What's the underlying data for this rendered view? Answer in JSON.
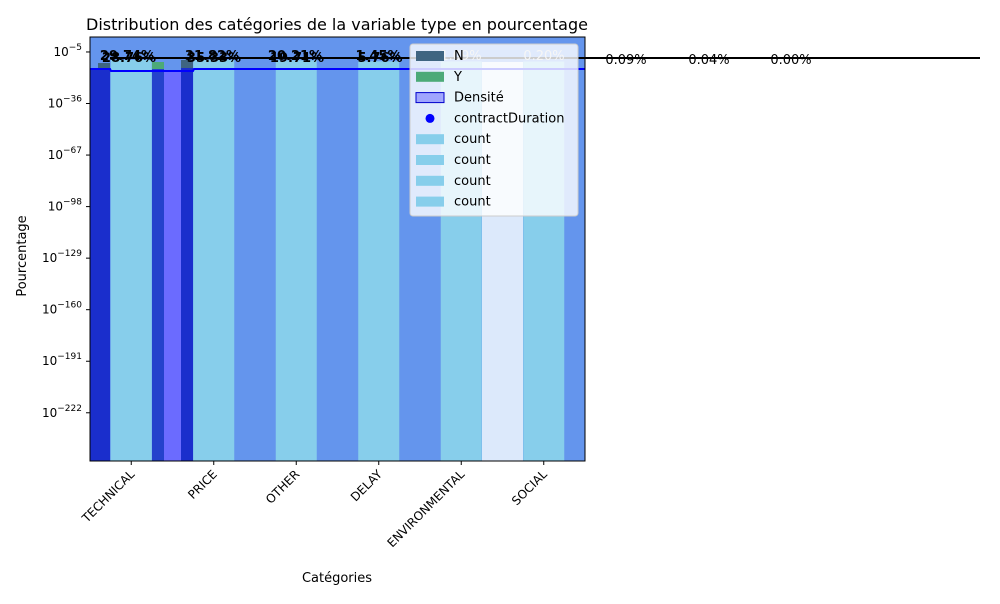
{
  "chart_data": {
    "type": "bar",
    "title": "Distribution des catégories de la variable type en pourcentage",
    "xlabel": "Catégories",
    "ylabel": "Pourcentage",
    "yscale": "log",
    "categories": [
      "TECHNICAL",
      "PRICE",
      "OTHER",
      "DELAY",
      "ENVIRONMENTAL",
      "SOCIAL"
    ],
    "y_ticks": [
      {
        "exp": "-5"
      },
      {
        "exp": "-36"
      },
      {
        "exp": "-67"
      },
      {
        "exp": "-98"
      },
      {
        "exp": "-129"
      },
      {
        "exp": "-160"
      },
      {
        "exp": "-191"
      },
      {
        "exp": "-222"
      }
    ],
    "ylim_exponent": [
      -251,
      4
    ],
    "series": [
      {
        "name": "N",
        "color": "#3f6581"
      },
      {
        "name": "Y",
        "color": "#4caa78"
      },
      {
        "name": "Densité",
        "color": "#6b6bff"
      },
      {
        "name": "contractDuration",
        "color": "#0000ff"
      },
      {
        "name": "count",
        "color": "#87ceeb"
      },
      {
        "name": "count",
        "color": "#87ceeb"
      },
      {
        "name": "count",
        "color": "#87ceeb"
      },
      {
        "name": "count",
        "color": "#87ceeb"
      }
    ],
    "count_values": [
      27.0,
      27.0,
      23.0,
      9.0,
      7.0,
      6.0
    ],
    "bar_labels": [
      {
        "text": "29.74%",
        "color": "#000000",
        "slot": 0
      },
      {
        "text": "28.76%",
        "color": "#000000",
        "slot": 0
      },
      {
        "text": "31.82%",
        "color": "#000000",
        "slot": 1
      },
      {
        "text": "35.33%",
        "color": "#000000",
        "slot": 1
      },
      {
        "text": "20.21%",
        "color": "#000000",
        "slot": 2
      },
      {
        "text": "19.71%",
        "color": "#000000",
        "slot": 2
      },
      {
        "text": "1.45%",
        "color": "#000000",
        "slot": 3
      },
      {
        "text": "5.76%",
        "color": "#000000",
        "slot": 3
      },
      {
        "text": "1.09%",
        "color": "#d3d3d3",
        "slot": 4
      },
      {
        "text": "0.20%",
        "color": "#d3d3d3",
        "slot": 5
      },
      {
        "text": "0.09%",
        "color": "#000000",
        "slot": 6
      },
      {
        "text": "0.04%",
        "color": "#000000",
        "slot": 7
      },
      {
        "text": "0.00%",
        "color": "#000000",
        "slot": 8
      }
    ],
    "colors": {
      "background_blue": "#6495ed",
      "dark_blue": "#1a2ecc",
      "density": "#6b6bff",
      "count": "#87ceeb",
      "n_bar": "#3f6581",
      "y_bar": "#4caa78",
      "line": "#0000ff"
    },
    "legend_position": "upper right",
    "grid": false
  }
}
